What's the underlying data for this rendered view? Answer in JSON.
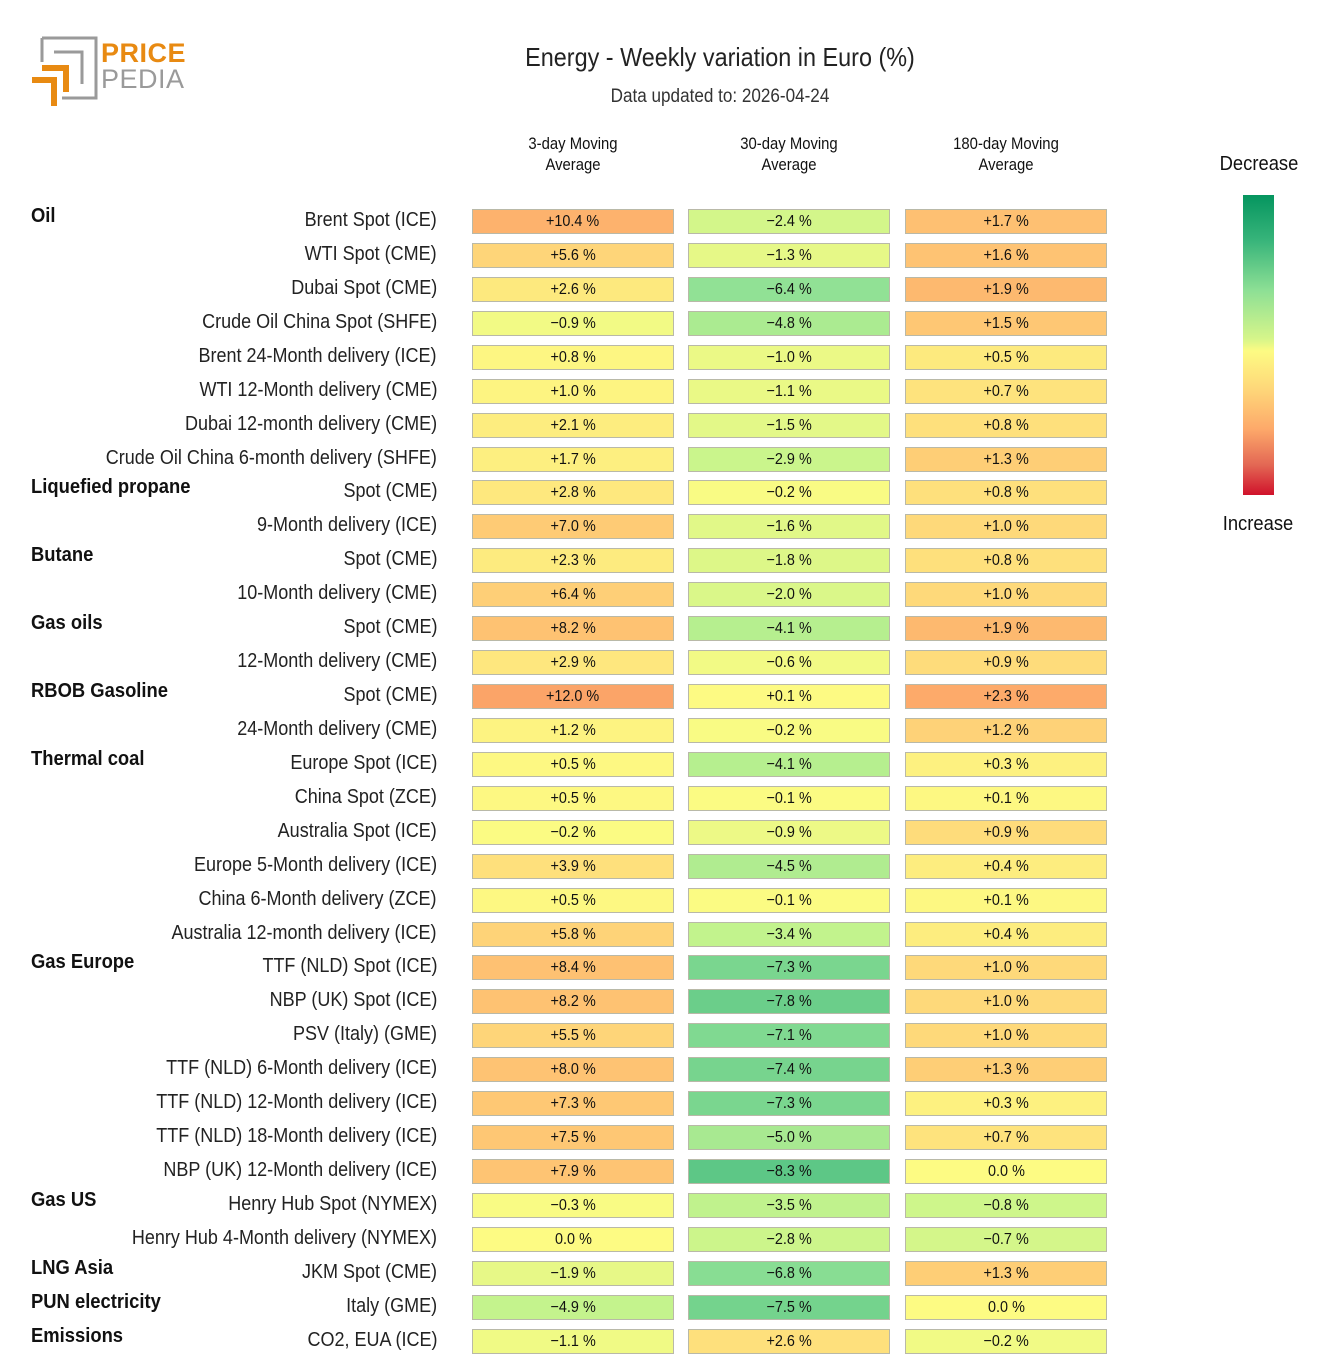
{
  "logo": {
    "line1": "PRICE",
    "line2": "PEDIA",
    "accent_color": "#e88a12",
    "gray_color": "#9a9a9a"
  },
  "header": {
    "title": "Energy - Weekly variation in Euro (%)",
    "subtitle": "Data updated to: 2026-04-24"
  },
  "legend": {
    "top_label": "Decrease",
    "bottom_label": "Increase",
    "top_color": "#05955f",
    "mid_color": "#fdfb83",
    "bottom_color": "#d0122b"
  },
  "chart_data": {
    "type": "heatmap",
    "title": "Energy - Weekly variation in Euro (%)",
    "subtitle": "Data updated to: 2026-04-24",
    "columns": [
      "3-day Moving\nAverage",
      "30-day Moving\nAverage",
      "180-day Moving\nAverage"
    ],
    "column_labels": [
      {
        "line1": "3-day Moving",
        "line2": "Average"
      },
      {
        "line1": "30-day Moving",
        "line2": "Average"
      },
      {
        "line1": "180-day Moving",
        "line2": "Average"
      }
    ],
    "unit": "%",
    "color_scale": "diverging: green = decrease, yellow = ~0, red = increase",
    "groups": [
      {
        "name": "Oil",
        "rows": [
          {
            "label": "Brent Spot (ICE)",
            "values": [
              10.4,
              -2.4,
              1.7
            ]
          },
          {
            "label": "WTI Spot (CME)",
            "values": [
              5.6,
              -1.3,
              1.6
            ]
          },
          {
            "label": "Dubai Spot (CME)",
            "values": [
              2.6,
              -6.4,
              1.9
            ]
          },
          {
            "label": "Crude Oil China Spot (SHFE)",
            "values": [
              -0.9,
              -4.8,
              1.5
            ]
          },
          {
            "label": "Brent 24-Month delivery (ICE)",
            "values": [
              0.8,
              -1.0,
              0.5
            ]
          },
          {
            "label": "WTI 12-Month delivery (CME)",
            "values": [
              1.0,
              -1.1,
              0.7
            ]
          },
          {
            "label": "Dubai 12-month delivery (CME)",
            "values": [
              2.1,
              -1.5,
              0.8
            ]
          },
          {
            "label": "Crude Oil China 6-month delivery (SHFE)",
            "values": [
              1.7,
              -2.9,
              1.3
            ]
          }
        ]
      },
      {
        "name": "Liquefied propane",
        "rows": [
          {
            "label": "Spot (CME)",
            "values": [
              2.8,
              -0.2,
              0.8
            ]
          },
          {
            "label": "9-Month delivery (ICE)",
            "values": [
              7.0,
              -1.6,
              1.0
            ]
          }
        ]
      },
      {
        "name": "Butane",
        "rows": [
          {
            "label": "Spot (CME)",
            "values": [
              2.3,
              -1.8,
              0.8
            ]
          },
          {
            "label": "10-Month delivery (CME)",
            "values": [
              6.4,
              -2.0,
              1.0
            ]
          }
        ]
      },
      {
        "name": "Gas oils",
        "rows": [
          {
            "label": "Spot (CME)",
            "values": [
              8.2,
              -4.1,
              1.9
            ]
          },
          {
            "label": "12-Month delivery (CME)",
            "values": [
              2.9,
              -0.6,
              0.9
            ]
          }
        ]
      },
      {
        "name": "RBOB Gasoline",
        "rows": [
          {
            "label": "Spot (CME)",
            "values": [
              12.0,
              0.1,
              2.3
            ]
          },
          {
            "label": "24-Month delivery (CME)",
            "values": [
              1.2,
              -0.2,
              1.2
            ]
          }
        ]
      },
      {
        "name": "Thermal coal",
        "rows": [
          {
            "label": "Europe Spot (ICE)",
            "values": [
              0.5,
              -4.1,
              0.3
            ]
          },
          {
            "label": "China Spot (ZCE)",
            "values": [
              0.5,
              -0.1,
              0.1
            ]
          },
          {
            "label": "Australia Spot (ICE)",
            "values": [
              -0.2,
              -0.9,
              0.9
            ]
          },
          {
            "label": "Europe 5-Month delivery (ICE)",
            "values": [
              3.9,
              -4.5,
              0.4
            ]
          },
          {
            "label": "China 6-Month delivery (ZCE)",
            "values": [
              0.5,
              -0.1,
              0.1
            ]
          },
          {
            "label": "Australia 12-month delivery (ICE)",
            "values": [
              5.8,
              -3.4,
              0.4
            ]
          }
        ]
      },
      {
        "name": "Gas Europe",
        "rows": [
          {
            "label": "TTF (NLD) Spot (ICE)",
            "values": [
              8.4,
              -7.3,
              1.0
            ]
          },
          {
            "label": "NBP (UK) Spot (ICE)",
            "values": [
              8.2,
              -7.8,
              1.0
            ]
          },
          {
            "label": "PSV (Italy) (GME)",
            "values": [
              5.5,
              -7.1,
              1.0
            ]
          },
          {
            "label": "TTF (NLD) 6-Month delivery (ICE)",
            "values": [
              8.0,
              -7.4,
              1.3
            ]
          },
          {
            "label": "TTF (NLD) 12-Month delivery (ICE)",
            "values": [
              7.3,
              -7.3,
              0.3
            ]
          },
          {
            "label": "TTF (NLD) 18-Month delivery (ICE)",
            "values": [
              7.5,
              -5.0,
              0.7
            ]
          },
          {
            "label": "NBP (UK) 12-Month delivery (ICE)",
            "values": [
              7.9,
              -8.3,
              0.0
            ]
          }
        ]
      },
      {
        "name": "Gas US",
        "rows": [
          {
            "label": "Henry Hub Spot (NYMEX)",
            "values": [
              -0.3,
              -3.5,
              -0.8
            ]
          },
          {
            "label": "Henry Hub 4-Month delivery (NYMEX)",
            "values": [
              0.0,
              -2.8,
              -0.7
            ]
          }
        ]
      },
      {
        "name": "LNG Asia",
        "rows": [
          {
            "label": "JKM Spot (CME)",
            "values": [
              -1.9,
              -6.8,
              1.3
            ]
          }
        ]
      },
      {
        "name": "PUN electricity",
        "rows": [
          {
            "label": "Italy (GME)",
            "values": [
              -4.9,
              -7.5,
              0.0
            ]
          }
        ]
      },
      {
        "name": "Emissions",
        "rows": [
          {
            "label": "CO2, EUA (ICE)",
            "values": [
              -1.1,
              2.6,
              -0.2
            ]
          }
        ]
      }
    ]
  }
}
